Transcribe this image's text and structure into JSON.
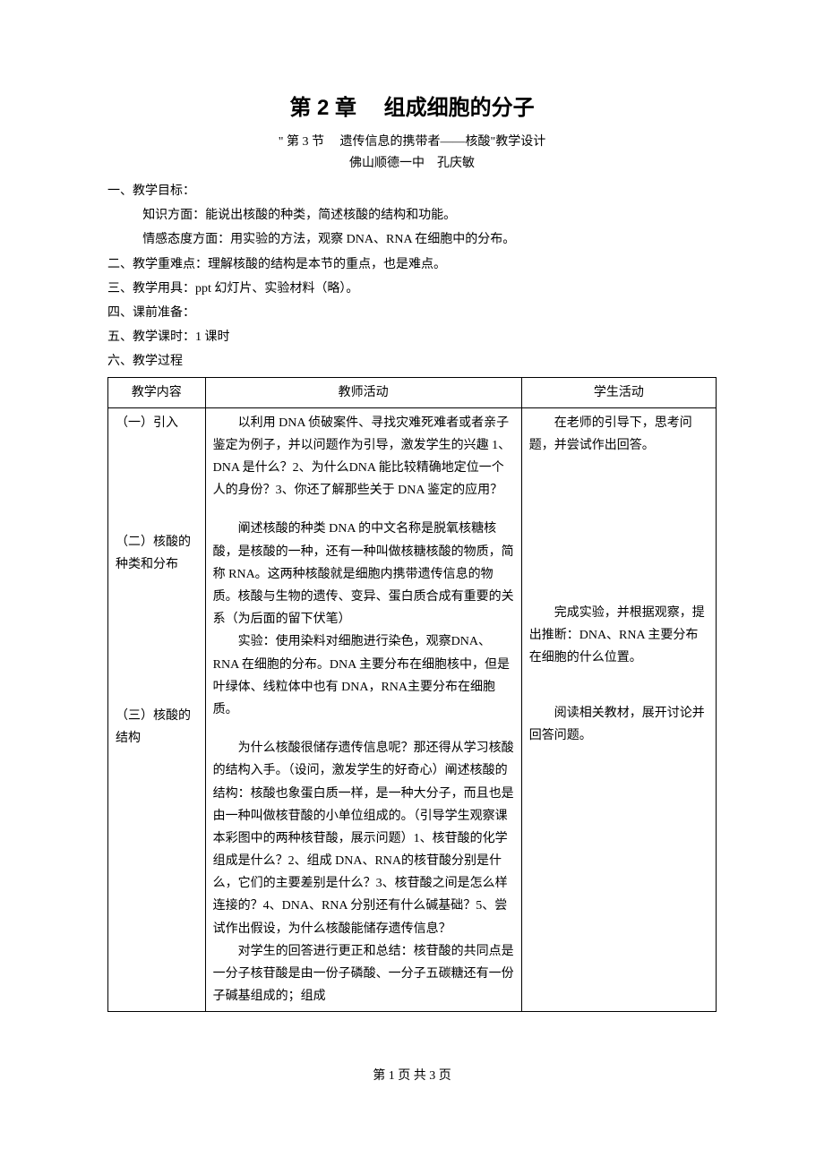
{
  "title": "第 2 章　 组成细胞的分子",
  "subtitle": "\" 第 3 节　 遗传信息的携带者——核酸\"教学设计",
  "author": "佛山顺德一中　孔庆敏",
  "sections": {
    "s1": "一、教学目标：",
    "s1a": "知识方面：能说出核酸的种类，简述核酸的结构和功能。",
    "s1b": "情感态度方面：用实验的方法，观察 DNA、RNA 在细胞中的分布。",
    "s2": "二、教学重难点：理解核酸的结构是本节的重点，也是难点。",
    "s3": "三、教学用具：ppt 幻灯片、实验材料（略）。",
    "s4": "四、课前准备：",
    "s5": "五、教学课时：1 课时",
    "s6": "六、教学过程"
  },
  "table": {
    "headers": {
      "c1": "教学内容",
      "c2": "教师活动",
      "c3": "学生活动"
    },
    "row1": {
      "c1": "（一）引入",
      "c2": "以利用 DNA 侦破案件、寻找灾难死难者或者亲子鉴定为例子，并以问题作为引导，激发学生的兴趣 1、DNA 是什么？2、为什么DNA 能比较精确地定位一个人的身份？3、你还了解那些关于 DNA 鉴定的应用？",
      "c3": "在老师的引导下，思考问题，并尝试作出回答。"
    },
    "row2": {
      "c1": "（二）核酸的种类和分布",
      "c2a": "阐述核酸的种类 DNA 的中文名称是脱氧核糖核酸，是核酸的一种，还有一种叫做核糖核酸的物质，简称 RNA。这两种核酸就是细胞内携带遗传信息的物质。核酸与生物的遗传、变异、蛋白质合成有重要的关系（为后面的留下伏笔）",
      "c2b": "实验：使用染料对细胞进行染色，观察DNA、RNA 在细胞的分布。DNA 主要分布在细胞核中，但是叶绿体、线粒体中也有 DNA，RNA主要分布在细胞质。",
      "c3": "完成实验，并根据观察，提出推断：DNA、RNA 主要分布在细胞的什么位置。"
    },
    "row3": {
      "c1": "（三）核酸的结构",
      "c2a": "为什么核酸很储存遗传信息呢？那还得从学习核酸的结构入手。（设问，激发学生的好奇心）阐述核酸的结构：核酸也象蛋白质一样，是一种大分子，而且也是由一种叫做核苷酸的小单位组成的。（引导学生观察课本彩图中的两种核苷酸，展示问题）1、核苷酸的化学组成是什么？2、组成 DNA、RNA的核苷酸分别是什么，它们的主要差别是什么？3、核苷酸之间是怎么样连接的？4、DNA、RNA 分别还有什么碱基础？5、尝试作出假设，为什么核酸能储存遗传信息？",
      "c2b": "对学生的回答进行更正和总结：核苷酸的共同点是一分子核苷酸是由一份子磷酸、一分子五碳糖还有一份子碱基组成的；组成",
      "c3": "阅读相关教材，展开讨论并回答问题。"
    }
  },
  "footer": "第 1 页 共 3 页"
}
